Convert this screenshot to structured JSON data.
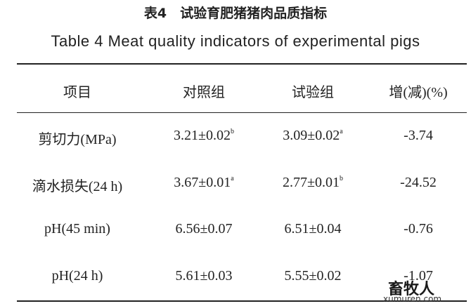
{
  "title": {
    "cn": "表4　试验育肥猪猪肉品质指标",
    "en": "Table 4   Meat quality indicators of experimental pigs"
  },
  "table": {
    "header": [
      "项目",
      "对照组",
      "试验组",
      "增(减)(%)"
    ],
    "rows": [
      [
        "剪切力(MPa)",
        {
          "value": "3.21±0.02",
          "sup": "b"
        },
        {
          "value": "3.09±0.02",
          "sup": "a"
        },
        "-3.74"
      ],
      [
        "滴水损失(24 h)",
        {
          "value": "3.67±0.01",
          "sup": "a"
        },
        {
          "value": "2.77±0.01",
          "sup": "b"
        },
        "-24.52"
      ],
      [
        "pH(45 min)",
        "6.56±0.07",
        "6.51±0.04",
        "-0.76"
      ],
      [
        "pH(24 h)",
        "5.61±0.03",
        "5.55±0.02",
        "-1.07"
      ]
    ]
  },
  "watermark": {
    "name": "畜牧人",
    "site": "xumuren.com"
  }
}
